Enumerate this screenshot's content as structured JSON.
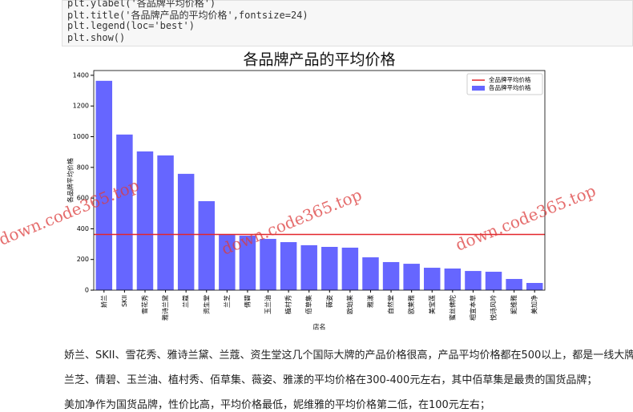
{
  "code": [
    "plt.ylabel('各品牌平均价格')",
    "plt.title('各品牌产品的平均价格',fontsize=24)",
    "plt.legend(loc='best')",
    "plt.show()"
  ],
  "chart_data": {
    "type": "bar",
    "title": "各品牌产品的平均价格",
    "x_label": "店名",
    "y_label": "各品牌平均价格",
    "categories": [
      "娇兰",
      "SKII",
      "雪花秀",
      "雅诗兰黛",
      "兰蔻",
      "资生堂",
      "兰芝",
      "倩碧",
      "玉兰油",
      "植村秀",
      "佰草集",
      "薇姿",
      "欧珀莱",
      "雅漾",
      "自然堂",
      "欧莱雅",
      "美宝莲",
      "蜜丝佛陀",
      "相宜本草",
      "悦诗风吟",
      "妮维雅",
      "美加净"
    ],
    "series": [
      {
        "name": "各品牌平均价格",
        "color": "#6666ff",
        "values": [
          1364,
          1014,
          904,
          878,
          758,
          580,
          360,
          355,
          334,
          313,
          293,
          282,
          277,
          214,
          183,
          172,
          146,
          141,
          125,
          120,
          73,
          47
        ]
      }
    ],
    "mean_line": {
      "name": "全品牌平均价格",
      "color": "#e3262b",
      "value": 363
    },
    "ylim": [
      0,
      1431
    ],
    "yticks": [
      0,
      200,
      400,
      600,
      800,
      1000,
      1200,
      1400
    ],
    "legend": "upper right"
  },
  "watermarks": [
    "down.code365.top",
    "down.code365.top",
    "down.code365.top"
  ],
  "paragraphs": [
    "娇兰、SKII、雪花秀、雅诗兰黛、兰蔻、资生堂这几个国际大牌的产品价格很高，产品平均价格都在500以上，都是一线大牌；",
    "兰芝、倩碧、玉兰油、植村秀、佰草集、薇姿、雅漾的平均价格在300-400元左右，其中佰草集是最贵的国货品牌；",
    "美加净作为国货品牌，性价比高，平均价格最低，妮维雅的平均价格第二低，在100元左右；"
  ]
}
